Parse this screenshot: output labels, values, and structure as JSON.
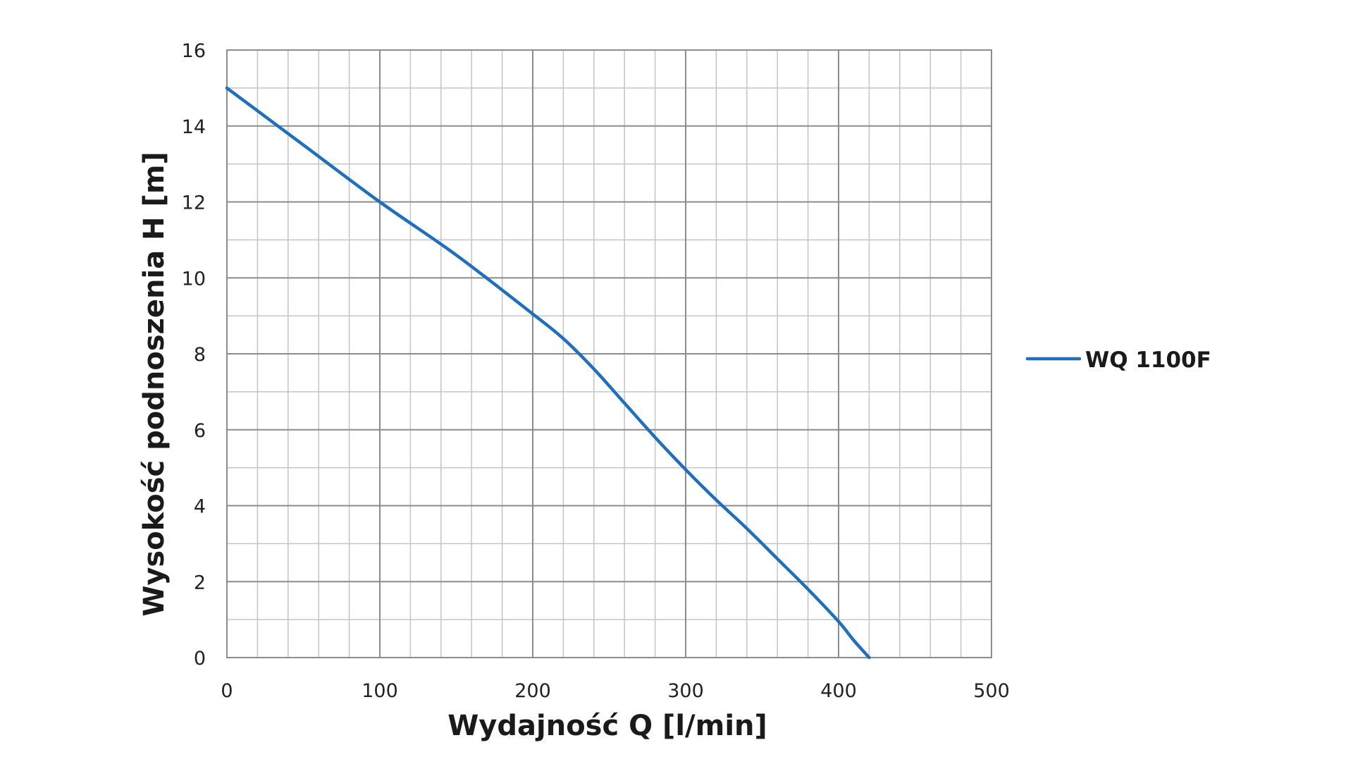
{
  "chart_data": {
    "type": "line",
    "title": "",
    "xlabel": "Wydajność Q [l/min]",
    "ylabel": "Wysokość podnoszenia H [m]",
    "xlim": [
      0,
      500
    ],
    "ylim": [
      0,
      16
    ],
    "x_ticks": [
      0,
      100,
      200,
      300,
      400,
      500
    ],
    "y_ticks": [
      0,
      2,
      4,
      6,
      8,
      10,
      12,
      14,
      16
    ],
    "x_minor_step": 20,
    "y_minor_step": 1,
    "grid": true,
    "legend_position": "right",
    "series": [
      {
        "name": "WQ 1100F",
        "color": "#1f6fbf",
        "x": [
          0,
          50,
          100,
          150,
          200,
          220,
          240,
          260,
          280,
          300,
          320,
          340,
          360,
          380,
          400,
          410,
          420
        ],
        "y": [
          15.0,
          13.5,
          12.0,
          10.6,
          9.05,
          8.4,
          7.6,
          6.7,
          5.8,
          4.95,
          4.15,
          3.4,
          2.6,
          1.8,
          0.95,
          0.45,
          0.0
        ]
      }
    ]
  }
}
